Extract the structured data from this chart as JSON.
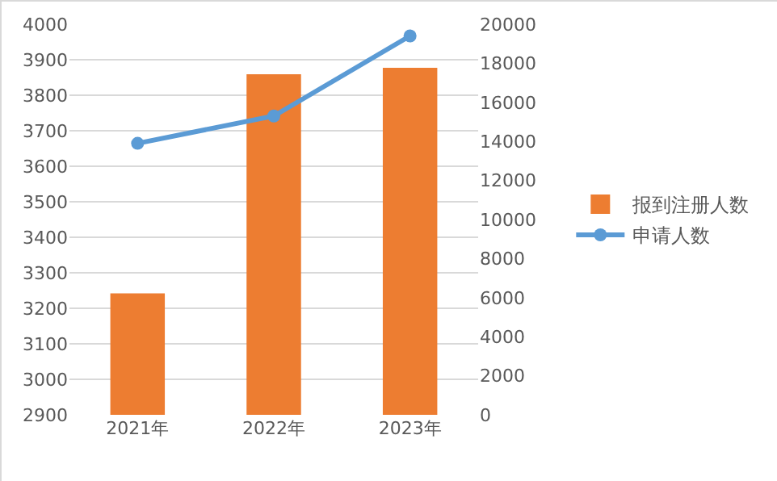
{
  "chart_data": {
    "type": "bar",
    "categories": [
      "2021年",
      "2022年",
      "2023年"
    ],
    "series": [
      {
        "name": "报到注册人数",
        "color": "#ed7d31",
        "values": [
          3242,
          3859,
          3877
        ]
      },
      {
        "name": "申请人数",
        "type": "line",
        "axis": "y2",
        "color": "#5b9bd5",
        "values": [
          13900,
          15300,
          19400
        ]
      }
    ],
    "ylim": [
      2900,
      4000
    ],
    "yticks": [
      2900,
      3000,
      3100,
      3200,
      3300,
      3400,
      3500,
      3600,
      3700,
      3800,
      3900,
      4000
    ],
    "y2lim": [
      0,
      20000
    ],
    "y2ticks": [
      0,
      2000,
      4000,
      6000,
      8000,
      10000,
      12000,
      14000,
      16000,
      18000,
      20000
    ],
    "grid": "y",
    "legend": "right",
    "marker": "circle"
  }
}
